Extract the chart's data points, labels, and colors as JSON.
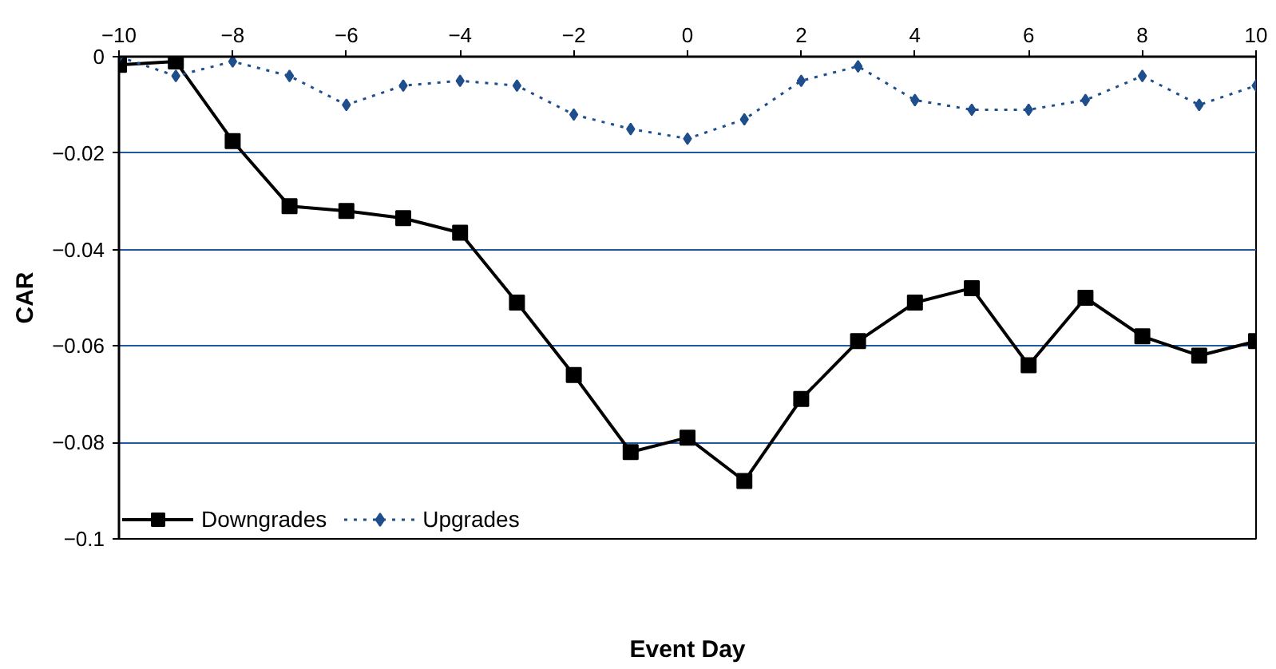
{
  "chart_data": {
    "type": "line",
    "xlabel": "Event Day",
    "ylabel": "CAR",
    "x": [
      -10,
      -9,
      -8,
      -7,
      -6,
      -5,
      -4,
      -3,
      -2,
      -1,
      0,
      1,
      2,
      3,
      4,
      5,
      6,
      7,
      8,
      9,
      10
    ],
    "xlim": [
      -10,
      10
    ],
    "xticks": [
      -10,
      -8,
      -6,
      -4,
      -2,
      0,
      2,
      4,
      6,
      8,
      10
    ],
    "ylim": [
      -0.1,
      0
    ],
    "yticks": [
      0,
      -0.02,
      -0.04,
      -0.06,
      -0.08,
      -0.1
    ],
    "grid": "y",
    "legend": "bottom left",
    "series": [
      {
        "name": "Downgrades",
        "color": "#000000",
        "marker": "square",
        "line_style": "solid",
        "values": [
          -0.0017,
          -0.001,
          -0.0175,
          -0.031,
          -0.032,
          -0.0335,
          -0.0365,
          -0.051,
          -0.066,
          -0.082,
          -0.079,
          -0.088,
          -0.071,
          -0.059,
          -0.051,
          -0.048,
          -0.064,
          -0.05,
          -0.058,
          -0.062,
          -0.059
        ]
      },
      {
        "name": "Upgrades",
        "color": "#1f4e8c",
        "marker": "diamond",
        "line_style": "dotted",
        "values": [
          0,
          -0.004,
          -0.001,
          -0.004,
          -0.01,
          -0.006,
          -0.005,
          -0.006,
          -0.012,
          -0.015,
          -0.017,
          -0.013,
          -0.005,
          -0.002,
          -0.009,
          -0.011,
          -0.011,
          -0.009,
          -0.004,
          -0.01,
          -0.006
        ]
      }
    ]
  }
}
